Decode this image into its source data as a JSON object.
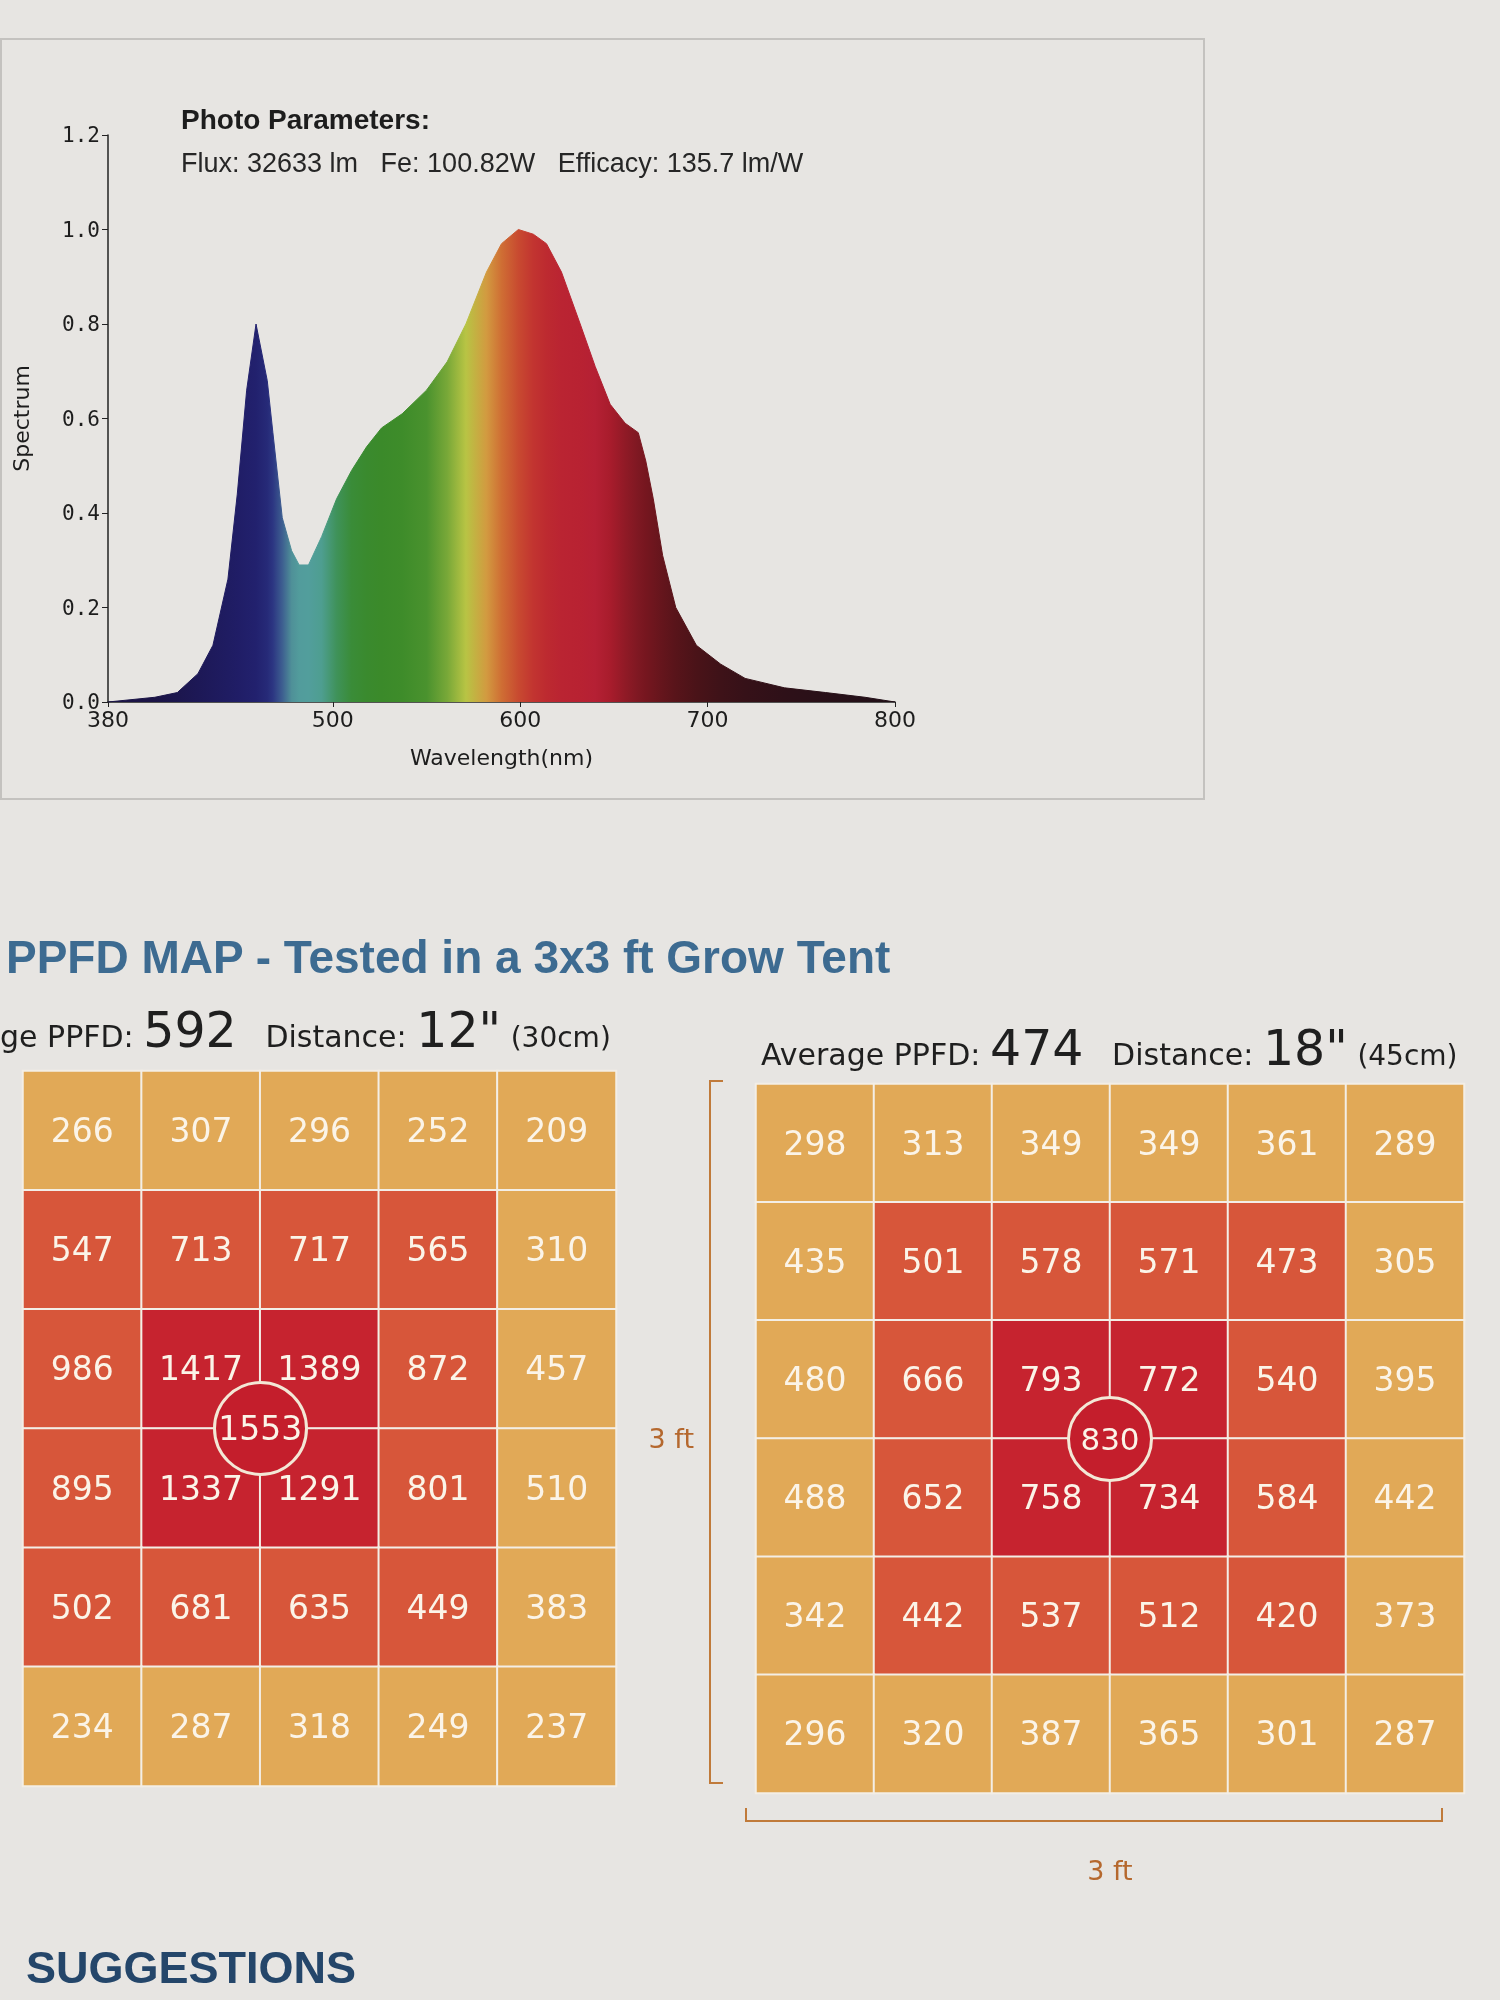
{
  "chart_data": [
    {
      "type": "area",
      "title": "Photo Parameters:",
      "subtitle": "Flux: 32633 lm   Fe: 100.82W   Efficacy: 135.7 lm/W",
      "xlabel": "Wavelength(nm)",
      "ylabel": "Spectrum",
      "x": [
        380,
        405,
        417,
        428,
        436,
        444,
        449,
        454,
        459,
        465,
        468,
        473,
        478,
        482,
        487,
        494,
        502,
        510,
        518,
        526,
        537,
        550,
        561,
        571,
        582,
        590,
        599,
        607,
        614,
        622,
        632,
        640,
        648,
        656,
        663,
        667,
        671,
        676,
        683,
        694,
        707,
        720,
        741,
        763,
        784,
        800
      ],
      "values": [
        0,
        0.01,
        0.02,
        0.06,
        0.12,
        0.26,
        0.44,
        0.66,
        0.8,
        0.68,
        0.57,
        0.39,
        0.32,
        0.29,
        0.29,
        0.35,
        0.43,
        0.49,
        0.54,
        0.58,
        0.61,
        0.66,
        0.72,
        0.8,
        0.91,
        0.97,
        1.0,
        0.99,
        0.97,
        0.91,
        0.8,
        0.71,
        0.63,
        0.59,
        0.57,
        0.51,
        0.43,
        0.31,
        0.2,
        0.12,
        0.08,
        0.05,
        0.03,
        0.02,
        0.01,
        0
      ],
      "colors": [
        "#1b1446",
        "#1b1446",
        "#1c164e",
        "#1d1856",
        "#1e1a5c",
        "#1f1c62",
        "#201d66",
        "#211f6a",
        "#22216e",
        "#262a78",
        "#2c3682",
        "#3d5e90",
        "#4f9098",
        "#529c9c",
        "#529e9c",
        "#4e9e90",
        "#3f925a",
        "#3a8c38",
        "#3a8a2e",
        "#3b8a2a",
        "#3e8c2a",
        "#4a922e",
        "#78a838",
        "#b8c444",
        "#d29a40",
        "#cf6e34",
        "#c84a30",
        "#c23430",
        "#bd2a30",
        "#ba2432",
        "#b82232",
        "#b52034",
        "#a81c2c",
        "#901a26",
        "#7e1822",
        "#76161f",
        "#6e161e",
        "#64151c",
        "#58141a",
        "#4a1318",
        "#3e1218",
        "#361118",
        "#2e1018",
        "#281018",
        "#241018",
        "#221018"
      ],
      "xlim": [
        380,
        800
      ],
      "ylim": [
        0,
        1.2
      ],
      "xticks": [
        380,
        500,
        600,
        700,
        800
      ],
      "yticks": [
        {
          "value": 0,
          "label": "0.0"
        },
        0.2,
        0.4,
        0.6,
        0.8,
        {
          "value": 1,
          "label": "1.0"
        },
        1.2
      ]
    },
    {
      "type": "heatmap",
      "title": "PPFD MAP - Tested in a 3x3 ft Grow Tent",
      "subtitle": "ge PPFD: 592   Distance: 12\" (30cm)",
      "categories": [
        null,
        null,
        null,
        null,
        null
      ],
      "y_categories": [
        null,
        null,
        null,
        null,
        null,
        null
      ],
      "cells": [
        [
          266,
          307,
          296,
          252,
          209
        ],
        [
          547,
          713,
          717,
          565,
          310
        ],
        [
          986,
          1417,
          1389,
          872,
          457
        ],
        [
          895,
          1337,
          1291,
          801,
          510
        ],
        [
          502,
          681,
          635,
          449,
          383
        ],
        [
          234,
          287,
          318,
          249,
          237
        ]
      ],
      "colors": [
        [
          "#e1a957",
          "#e1a957",
          "#e1a957",
          "#e1a957",
          "#e1a957"
        ],
        [
          "#d7563a",
          "#d7563a",
          "#d7563a",
          "#d7563a",
          "#e1a957"
        ],
        [
          "#d7563a",
          "#c6232f",
          "#c6232f",
          "#d7563a",
          "#e1a957"
        ],
        [
          "#d7563a",
          "#c6232f",
          "#c6232f",
          "#d7563a",
          "#e1a957"
        ],
        [
          "#d7563a",
          "#d7563a",
          "#d7563a",
          "#d7563a",
          "#e1a957"
        ],
        [
          "#e1a957",
          "#e1a957",
          "#e1a957",
          "#e1a957",
          "#e1a957"
        ]
      ],
      "data_labels": true,
      "annotations": [
        "1553"
      ]
    },
    {
      "type": "heatmap",
      "subtitle": "Average PPFD: 474   Distance: 18\" (45cm)",
      "xlabel": "3 ft",
      "ylabel": "3 ft",
      "categories": [
        null,
        null,
        null,
        null,
        null,
        null
      ],
      "y_categories": [
        null,
        null,
        null,
        null,
        null,
        null
      ],
      "cells": [
        [
          298,
          313,
          349,
          349,
          361,
          289
        ],
        [
          435,
          501,
          578,
          571,
          473,
          305
        ],
        [
          480,
          666,
          793,
          772,
          540,
          395
        ],
        [
          488,
          652,
          758,
          734,
          584,
          442
        ],
        [
          342,
          442,
          537,
          512,
          420,
          373
        ],
        [
          296,
          320,
          387,
          365,
          301,
          287
        ]
      ],
      "colors": [
        [
          "#e1a957",
          "#e1a957",
          "#e1a957",
          "#e1a957",
          "#e1a957",
          "#e1a957"
        ],
        [
          "#e1a957",
          "#d7563a",
          "#d7563a",
          "#d7563a",
          "#d7563a",
          "#e1a957"
        ],
        [
          "#e1a957",
          "#d7563a",
          "#c6232f",
          "#c6232f",
          "#d7563a",
          "#e1a957"
        ],
        [
          "#e1a957",
          "#d7563a",
          "#c6232f",
          "#c6232f",
          "#d7563a",
          "#e1a957"
        ],
        [
          "#e1a957",
          "#d7563a",
          "#d7563a",
          "#d7563a",
          "#d7563a",
          "#e1a957"
        ],
        [
          "#e1a957",
          "#e1a957",
          "#e1a957",
          "#e1a957",
          "#e1a957",
          "#e1a957"
        ]
      ],
      "data_labels": true,
      "annotations": [
        "830"
      ]
    },
    {
      "type": "other",
      "title": "SUGGESTIONS"
    }
  ]
}
